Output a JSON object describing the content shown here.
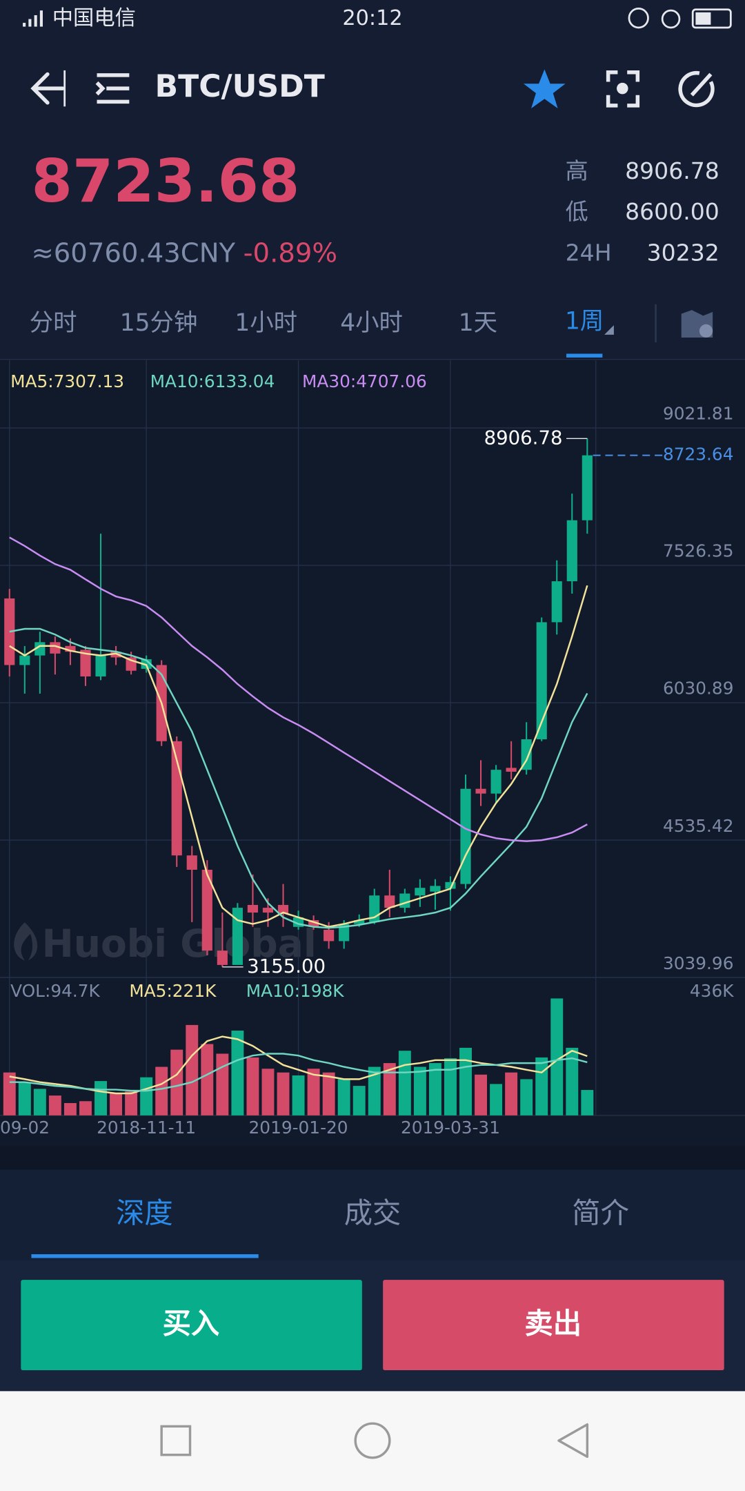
{
  "status_bar": {
    "carrier": "中国电信",
    "time": "20:12"
  },
  "header": {
    "pair": "BTC/USDT"
  },
  "ticker": {
    "price": "8723.68",
    "cny": "≈60760.43CNY",
    "change": "-0.89%",
    "high_label": "高",
    "high": "8906.78",
    "low_label": "低",
    "low": "8600.00",
    "vol_label": "24H",
    "vol": "30232"
  },
  "periods": [
    "分时",
    "15分钟",
    "1小时",
    "4小时",
    "1天",
    "1周"
  ],
  "chart_data": {
    "type": "candlestick",
    "watermark": "Huobi Global",
    "categories": [
      "09-02",
      null,
      null,
      null,
      null,
      null,
      null,
      null,
      null,
      "2018-11-11",
      null,
      null,
      null,
      null,
      null,
      null,
      null,
      null,
      null,
      "2019-01-20",
      null,
      null,
      null,
      null,
      null,
      null,
      null,
      null,
      null,
      "2019-03-31",
      null,
      null,
      null,
      null,
      null,
      null,
      null,
      null,
      null
    ],
    "open": [
      7166,
      6441,
      6545,
      6690,
      6649,
      6607,
      6317,
      6586,
      6524,
      6400,
      6441,
      5612,
      4369,
      4213,
      3333,
      3177,
      3830,
      3799,
      3830,
      3591,
      3664,
      3560,
      3436,
      3622,
      3643,
      3933,
      3799,
      3933,
      3975,
      4006,
      4058,
      5094,
      5042,
      5322,
      5301,
      5633,
      6907,
      7353,
      8017
    ],
    "high": [
      7270,
      6648,
      6804,
      6752,
      6731,
      6648,
      7871,
      6648,
      6586,
      6545,
      6493,
      5664,
      4472,
      4317,
      3747,
      3850,
      4161,
      3902,
      4058,
      3768,
      3716,
      3643,
      3664,
      3726,
      4006,
      4213,
      4006,
      4110,
      4110,
      4141,
      5249,
      5405,
      5353,
      5612,
      5819,
      6959,
      7581,
      8307,
      8906.78
    ],
    "low": [
      6317,
      6130,
      6130,
      6338,
      6441,
      6213,
      6276,
      6441,
      6338,
      6358,
      5560,
      4244,
      3643,
      3281,
      3155,
      3180,
      3591,
      3591,
      3591,
      3560,
      3560,
      3353,
      3353,
      3591,
      3622,
      3695,
      3747,
      3809,
      3778,
      3768,
      4006,
      4907,
      4938,
      5197,
      5249,
      5612,
      6773,
      7218,
      7871
    ],
    "close": [
      6441,
      6545,
      6690,
      6566,
      6586,
      6317,
      6545,
      6524,
      6379,
      6504,
      5612,
      4369,
      4213,
      3333,
      3177,
      3799,
      3747,
      3747,
      3737,
      3695,
      3591,
      3436,
      3622,
      3664,
      3933,
      3799,
      3954,
      4016,
      4037,
      4079,
      5094,
      5042,
      5301,
      5280,
      5633,
      6907,
      7353,
      8017,
      8723.64
    ],
    "up_color": "#0fae8a",
    "down_color": "#d44a69",
    "ylim": [
      3039.96,
      9757
    ],
    "yticks": [
      3039.96,
      4535.42,
      6030.89,
      7526.35,
      9021.81
    ],
    "grid": true,
    "high_label": "8906.78",
    "low_label": "3155.00",
    "last_label": "8723.64",
    "last_color": "#4a8fe6",
    "series": [
      {
        "name": "MA5:7307.13",
        "color": "#f3e39a",
        "values": [
          6649,
          6545,
          6649,
          6649,
          6597,
          6566,
          6545,
          6566,
          6493,
          6442,
          6027,
          5405,
          4783,
          4162,
          3799,
          3664,
          3623,
          3664,
          3747,
          3695,
          3644,
          3592,
          3623,
          3664,
          3695,
          3799,
          3851,
          3903,
          3954,
          4006,
          4369,
          4680,
          4939,
          5146,
          5405,
          5820,
          6234,
          6752,
          7307.13
        ]
      },
      {
        "name": "MA10:6133.04",
        "color": "#6fd6c1",
        "values": [
          6804,
          6835,
          6835,
          6773,
          6690,
          6628,
          6607,
          6587,
          6545,
          6493,
          6338,
          6027,
          5716,
          5302,
          4887,
          4473,
          4110,
          3851,
          3695,
          3623,
          3592,
          3581,
          3592,
          3613,
          3644,
          3675,
          3695,
          3716,
          3747,
          3799,
          3954,
          4141,
          4317,
          4493,
          4680,
          4991,
          5405,
          5820,
          6133.04
        ]
      },
      {
        "name": "MA30:4707.06",
        "color": "#c88cf2",
        "values": [
          7830,
          7737,
          7633,
          7540,
          7478,
          7374,
          7271,
          7188,
          7146,
          7084,
          6960,
          6804,
          6649,
          6525,
          6390,
          6234,
          6100,
          5975,
          5872,
          5789,
          5695,
          5592,
          5488,
          5385,
          5281,
          5177,
          5074,
          4970,
          4866,
          4763,
          4659,
          4597,
          4556,
          4535,
          4524,
          4535,
          4566,
          4618,
          4707.06
        ]
      }
    ],
    "volume": {
      "name": "VOL:94.7K",
      "values": [
        160,
        124,
        99,
        74,
        46,
        53,
        128,
        82,
        89,
        142,
        181,
        245,
        337,
        266,
        230,
        316,
        216,
        174,
        160,
        149,
        174,
        160,
        135,
        110,
        181,
        195,
        241,
        181,
        195,
        213,
        252,
        152,
        117,
        160,
        135,
        216,
        436,
        252,
        94.7
      ],
      "ylim": [
        0,
        436
      ],
      "yticks": [
        {
          "value": 436,
          "label": "436K"
        }
      ],
      "series": [
        {
          "name": "MA5:221K",
          "color": "#f3e39a",
          "values": [
            145,
            135,
            124,
            117,
            110,
            99,
            89,
            82,
            82,
            99,
            117,
            152,
            223,
            277,
            294,
            284,
            259,
            223,
            188,
            170,
            152,
            145,
            135,
            135,
            152,
            170,
            188,
            195,
            206,
            206,
            206,
            195,
            188,
            181,
            170,
            160,
            206,
            241,
            221
          ]
        },
        {
          "name": "MA10:198K",
          "color": "#6fd6c1",
          "values": [
            124,
            124,
            117,
            110,
            106,
            99,
            96,
            96,
            92,
            92,
            99,
            110,
            124,
            152,
            181,
            206,
            223,
            230,
            230,
            223,
            206,
            195,
            181,
            170,
            160,
            160,
            160,
            163,
            170,
            170,
            181,
            188,
            188,
            195,
            195,
            195,
            206,
            213,
            198
          ]
        }
      ]
    }
  },
  "tabs": [
    "深度",
    "成交",
    "简介"
  ],
  "buttons": {
    "buy": "买入",
    "sell": "卖出"
  }
}
